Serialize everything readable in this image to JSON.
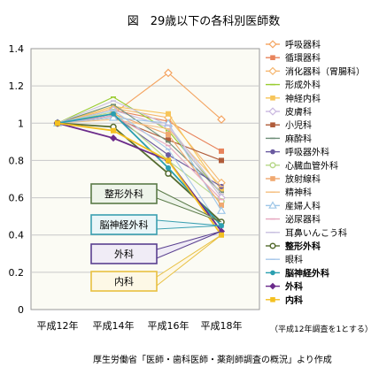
{
  "chart_data": {
    "type": "line",
    "title": "図　29歳以下の各科別医師数",
    "categories": [
      "平成12年",
      "平成14年",
      "平成16年",
      "平成18年"
    ],
    "ylim": [
      0,
      1.4
    ],
    "yticks": [
      "0",
      "0.2",
      "0.4",
      "0.6",
      "0.8",
      "1",
      "1.2",
      "1.4"
    ],
    "grid": true,
    "legend_position": "right",
    "note": "（平成12年調査を1とする）",
    "source": "厚生労働省「医師・歯科医師・薬剤師調査の概況」より作成",
    "series": [
      {
        "name": "呼吸器科",
        "color": "#f4a460",
        "marker": "diamond-open",
        "values": [
          1,
          1.05,
          1.27,
          1.02
        ]
      },
      {
        "name": "循環器科",
        "color": "#e8845c",
        "marker": "square",
        "values": [
          1,
          1.07,
          1.01,
          0.85
        ]
      },
      {
        "name": "消化器科（胃腸科）",
        "color": "#f5b66f",
        "marker": "diamond-open",
        "values": [
          1,
          1.08,
          1.03,
          0.68
        ]
      },
      {
        "name": "形成外科",
        "color": "#9acd32",
        "marker": "line",
        "values": [
          1,
          1.14,
          0.96,
          0.62
        ]
      },
      {
        "name": "神経内科",
        "color": "#f7c55a",
        "marker": "square",
        "values": [
          1,
          1.09,
          1.05,
          0.64
        ]
      },
      {
        "name": "皮膚科",
        "color": "#c9b7e0",
        "marker": "diamond-open",
        "values": [
          1,
          1.07,
          0.98,
          0.6
        ]
      },
      {
        "name": "小児科",
        "color": "#b05c3a",
        "marker": "square",
        "values": [
          1,
          1.03,
          0.91,
          0.8
        ]
      },
      {
        "name": "麻酔科",
        "color": "#6f8f7a",
        "marker": "line",
        "values": [
          1,
          1.1,
          0.9,
          0.63
        ]
      },
      {
        "name": "呼吸器外科",
        "color": "#6a5aa0",
        "marker": "circle",
        "values": [
          1,
          1.04,
          0.83,
          0.66
        ]
      },
      {
        "name": "心臓血管外科",
        "color": "#b8d88a",
        "marker": "circle-open",
        "values": [
          1,
          1.06,
          0.8,
          0.58
        ]
      },
      {
        "name": "放射線科",
        "color": "#f0a870",
        "marker": "square",
        "values": [
          1,
          1.05,
          0.94,
          0.56
        ]
      },
      {
        "name": "精神科",
        "color": "#f5c080",
        "marker": "line",
        "values": [
          1,
          1.02,
          0.97,
          0.66
        ]
      },
      {
        "name": "産婦人科",
        "color": "#9fc7e8",
        "marker": "triangle-open",
        "values": [
          1,
          1.03,
          1.0,
          0.53
        ]
      },
      {
        "name": "泌尿器科",
        "color": "#e6a8c0",
        "marker": "line",
        "values": [
          1,
          1.04,
          0.88,
          0.59
        ]
      },
      {
        "name": "耳鼻いんこう科",
        "color": "#c8c0e0",
        "marker": "line",
        "values": [
          1,
          1.12,
          0.99,
          0.62
        ]
      },
      {
        "name": "整形外科",
        "color": "#556b2f",
        "marker": "circle-open",
        "values": [
          1,
          0.98,
          0.73,
          0.47
        ]
      },
      {
        "name": "眼科",
        "color": "#a8c8ea",
        "marker": "line",
        "values": [
          1,
          1.07,
          0.86,
          0.44
        ]
      },
      {
        "name": "脳神経外科",
        "color": "#2a9fb0",
        "marker": "circle",
        "values": [
          1,
          1.05,
          0.76,
          0.45
        ]
      },
      {
        "name": "外科",
        "color": "#6a2a8a",
        "marker": "diamond",
        "values": [
          1,
          0.92,
          0.8,
          0.42
        ]
      },
      {
        "name": "内科",
        "color": "#f4c020",
        "marker": "square",
        "values": [
          1,
          0.96,
          0.8,
          0.4
        ]
      }
    ],
    "callouts": [
      {
        "label": "整形外科",
        "border": "#5a7a48",
        "fill": "#eef4ea"
      },
      {
        "label": "脳神経外科",
        "border": "#3a9fb0",
        "fill": "#eaf6f8"
      },
      {
        "label": "外科",
        "border": "#5a4090",
        "fill": "#f0ecf6"
      },
      {
        "label": "内科",
        "border": "#e8c040",
        "fill": "#fdf8e6"
      }
    ]
  }
}
